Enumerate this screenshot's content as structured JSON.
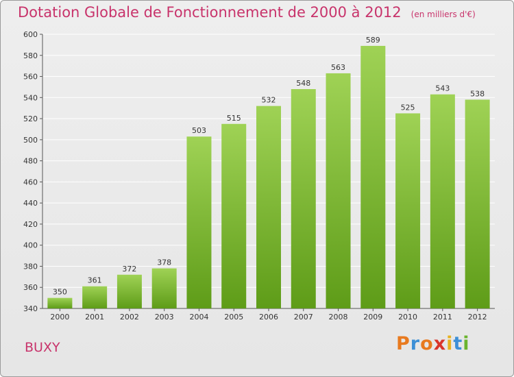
{
  "chart_data": {
    "type": "bar",
    "title": "Dotation Globale de Fonctionnement de 2000 à 2012",
    "unit_note": "(en milliers d'€)",
    "categories": [
      "2000",
      "2001",
      "2002",
      "2003",
      "2004",
      "2005",
      "2006",
      "2007",
      "2008",
      "2009",
      "2010",
      "2011",
      "2012"
    ],
    "values": [
      350,
      361,
      372,
      378,
      503,
      515,
      532,
      548,
      563,
      589,
      525,
      543,
      538
    ],
    "ylim": [
      340,
      600
    ],
    "yticks": [
      340,
      360,
      380,
      400,
      420,
      440,
      460,
      480,
      500,
      520,
      540,
      560,
      580,
      600
    ],
    "grid": true,
    "colors": {
      "bar_top": "#9fd255",
      "bar_bottom": "#5e9c18",
      "grid": "#ffffff",
      "title": "#c8336b"
    }
  },
  "place_name": "BUXY",
  "logo": {
    "text": "Proxiti",
    "letters": [
      "P",
      "r",
      "o",
      "x",
      "i",
      "t",
      "i"
    ],
    "colors": [
      "#e87a1f",
      "#3d8fd6",
      "#e87a1f",
      "#d9352b",
      "#e8b21f",
      "#3d8fd6",
      "#6ab42d"
    ]
  }
}
